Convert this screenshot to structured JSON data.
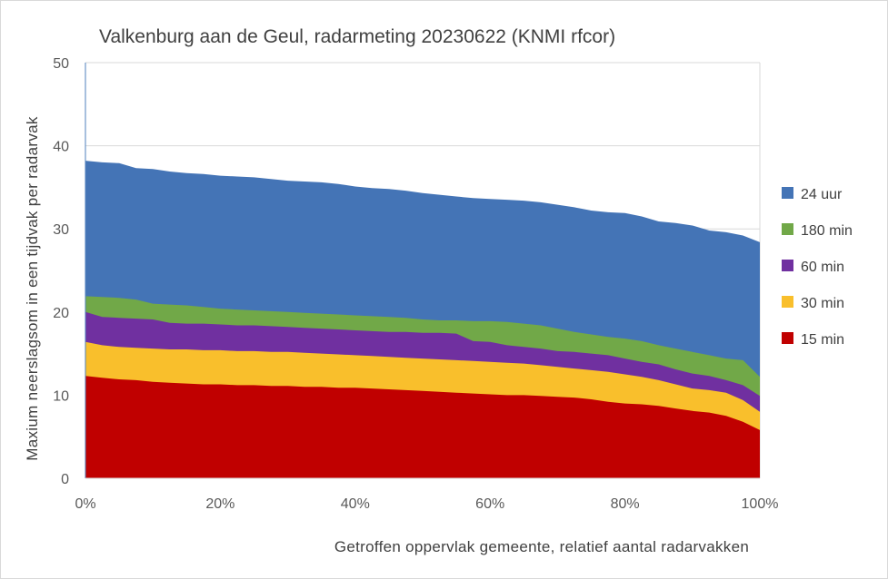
{
  "chart_data": {
    "type": "area",
    "stacking": "overlay",
    "title": "Valkenburg aan de Geul, radarmeting 20230622 (KNMI rfcor)",
    "xlabel": "Getroffen  oppervlak  gemeente,  relatief  aantal  radarvakken",
    "ylabel": "Maxium  neerslagsom  in  een  tijdvak  per  radarvak",
    "xlim": [
      0,
      100
    ],
    "ylim": [
      0,
      50
    ],
    "x_ticks": [
      "0%",
      "20%",
      "40%",
      "60%",
      "80%",
      "100%"
    ],
    "x_tick_values": [
      0,
      20,
      40,
      60,
      80,
      100
    ],
    "y_ticks": [
      "0",
      "10",
      "20",
      "30",
      "40",
      "50"
    ],
    "y_tick_values": [
      0,
      10,
      20,
      30,
      40,
      50
    ],
    "grid": "horizontal",
    "legend_position": "right",
    "x": [
      0,
      2.5,
      5,
      7.5,
      10,
      12.5,
      15,
      17.5,
      20,
      22.5,
      25,
      27.5,
      30,
      32.5,
      35,
      37.5,
      40,
      42.5,
      45,
      47.5,
      50,
      52.5,
      55,
      57.5,
      60,
      62.5,
      65,
      67.5,
      70,
      72.5,
      75,
      77.5,
      80,
      82.5,
      85,
      87.5,
      90,
      92.5,
      95,
      97.5,
      100
    ],
    "series": [
      {
        "name": "24 uur",
        "color": "#4474b6",
        "values": [
          38.2,
          38.0,
          37.9,
          37.3,
          37.2,
          36.9,
          36.7,
          36.6,
          36.4,
          36.3,
          36.2,
          36.0,
          35.8,
          35.7,
          35.6,
          35.4,
          35.1,
          34.9,
          34.8,
          34.6,
          34.3,
          34.1,
          33.9,
          33.7,
          33.6,
          33.5,
          33.4,
          33.2,
          32.9,
          32.6,
          32.2,
          32.0,
          31.9,
          31.5,
          30.9,
          30.7,
          30.4,
          29.8,
          29.6,
          29.2,
          28.4
        ]
      },
      {
        "name": "180 min",
        "color": "#71a848",
        "values": [
          21.9,
          21.8,
          21.7,
          21.5,
          21.0,
          20.9,
          20.8,
          20.6,
          20.4,
          20.3,
          20.2,
          20.1,
          20.0,
          19.9,
          19.8,
          19.7,
          19.6,
          19.5,
          19.4,
          19.3,
          19.1,
          19.0,
          19.0,
          18.9,
          18.9,
          18.8,
          18.6,
          18.4,
          18.0,
          17.6,
          17.3,
          17.0,
          16.8,
          16.5,
          16.0,
          15.6,
          15.2,
          14.8,
          14.4,
          14.2,
          12.2
        ]
      },
      {
        "name": "60 min",
        "color": "#7030a0",
        "values": [
          20.0,
          19.4,
          19.3,
          19.2,
          19.1,
          18.7,
          18.6,
          18.6,
          18.5,
          18.4,
          18.4,
          18.3,
          18.2,
          18.1,
          18.0,
          17.9,
          17.8,
          17.7,
          17.6,
          17.6,
          17.5,
          17.5,
          17.4,
          16.5,
          16.4,
          16.0,
          15.8,
          15.6,
          15.3,
          15.2,
          15.0,
          14.8,
          14.4,
          14.0,
          13.7,
          13.1,
          12.6,
          12.3,
          11.8,
          11.2,
          9.9
        ]
      },
      {
        "name": "30 min",
        "color": "#f9bf2c",
        "values": [
          16.4,
          16.0,
          15.8,
          15.7,
          15.6,
          15.5,
          15.5,
          15.4,
          15.4,
          15.3,
          15.3,
          15.2,
          15.2,
          15.1,
          15.0,
          14.9,
          14.8,
          14.7,
          14.6,
          14.5,
          14.4,
          14.3,
          14.2,
          14.1,
          14.0,
          13.9,
          13.8,
          13.6,
          13.4,
          13.2,
          13.0,
          12.8,
          12.5,
          12.2,
          11.8,
          11.3,
          10.8,
          10.6,
          10.3,
          9.4,
          8.0
        ]
      },
      {
        "name": "15 min",
        "color": "#c00000",
        "values": [
          12.3,
          12.1,
          11.9,
          11.8,
          11.6,
          11.5,
          11.4,
          11.3,
          11.3,
          11.2,
          11.2,
          11.1,
          11.1,
          11.0,
          11.0,
          10.9,
          10.9,
          10.8,
          10.7,
          10.6,
          10.5,
          10.4,
          10.3,
          10.2,
          10.1,
          10.0,
          10.0,
          9.9,
          9.8,
          9.7,
          9.5,
          9.2,
          9.0,
          8.9,
          8.7,
          8.4,
          8.1,
          7.9,
          7.5,
          6.8,
          5.8
        ]
      }
    ]
  }
}
